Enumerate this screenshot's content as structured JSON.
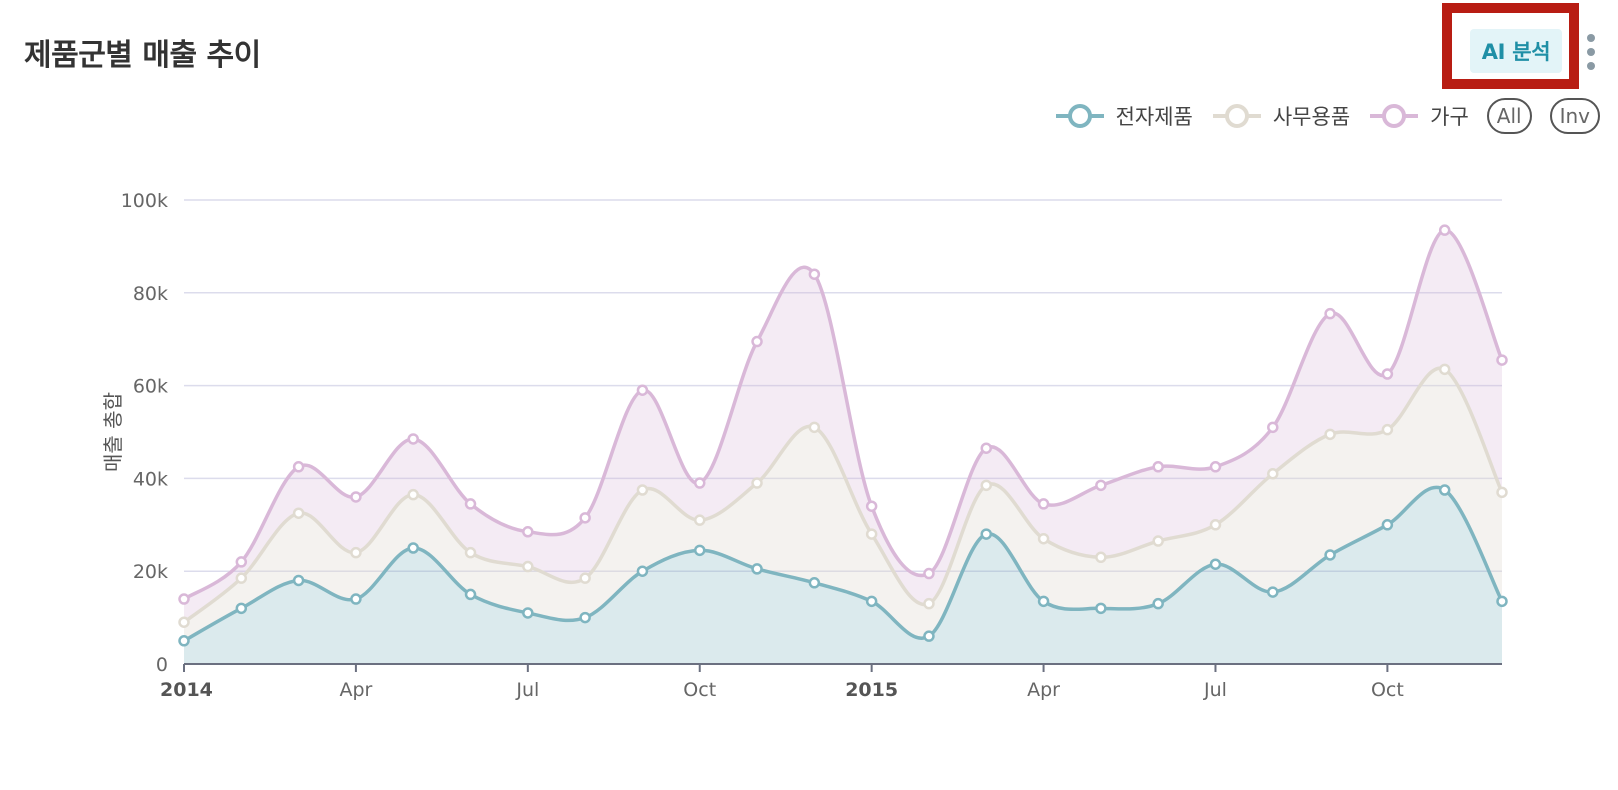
{
  "header": {
    "title": "제품군별 매출 추이",
    "ai_button_label": "AI 분석",
    "more_icon": "more-vertical-icon"
  },
  "legend": {
    "items": [
      "전자제품",
      "사무용품",
      "가구"
    ],
    "all_label": "All",
    "inv_label": "Inv"
  },
  "colors": {
    "electronics": "#7fb5c0",
    "office": "#e0dbd1",
    "furniture": "#d9b8d8",
    "highlight_border": "#b81d13"
  },
  "chart_data": {
    "type": "area",
    "stacked": true,
    "ylabel": "매출 총합",
    "ylim": [
      0,
      100000
    ],
    "yticks": [
      "0",
      "20k",
      "40k",
      "60k",
      "80k",
      "100k"
    ],
    "xticks": [
      "2014",
      "Apr",
      "Jul",
      "Oct",
      "2015",
      "Apr",
      "Jul",
      "Oct"
    ],
    "x": [
      "2014-01",
      "2014-02",
      "2014-03",
      "2014-04",
      "2014-05",
      "2014-06",
      "2014-07",
      "2014-08",
      "2014-09",
      "2014-10",
      "2014-11",
      "2014-12",
      "2015-01",
      "2015-02",
      "2015-03",
      "2015-04",
      "2015-05",
      "2015-06",
      "2015-07",
      "2015-08",
      "2015-09",
      "2015-10",
      "2015-11",
      "2015-12"
    ],
    "series": [
      {
        "name": "전자제품",
        "values": [
          5000,
          12000,
          18000,
          14000,
          25000,
          15000,
          11000,
          10000,
          20000,
          24500,
          20500,
          17500,
          13500,
          6000,
          28000,
          13500,
          12000,
          13000,
          21500,
          15500,
          23500,
          30000,
          37500,
          13500
        ]
      },
      {
        "name": "사무용품",
        "values": [
          4000,
          6500,
          14500,
          10000,
          11500,
          9000,
          10000,
          8500,
          17500,
          6500,
          18500,
          33500,
          14500,
          7000,
          10500,
          13500,
          11000,
          13500,
          8500,
          25500,
          26000,
          20500,
          26000,
          23500
        ]
      },
      {
        "name": "가구",
        "values": [
          5000,
          3500,
          10000,
          12000,
          12000,
          10500,
          7500,
          13000,
          21500,
          8000,
          30500,
          33000,
          6000,
          6500,
          8000,
          7500,
          15500,
          16000,
          12500,
          10000,
          26000,
          12000,
          30000,
          28500
        ]
      }
    ],
    "grid": true,
    "legend_position": "top-right"
  }
}
